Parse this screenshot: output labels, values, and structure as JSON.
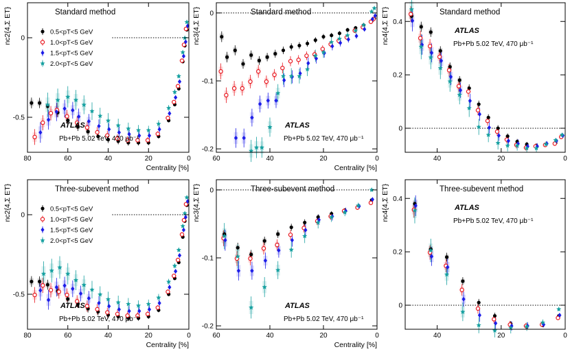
{
  "figure": {
    "legend": [
      "0.5<pT<5 GeV",
      "1.0<pT<5 GeV",
      "1.5<pT<5 GeV",
      "2.0<pT<5 GeV"
    ],
    "experiment": "ATLAS",
    "dataset": "Pb+Pb 5.02 TeV, 470 μb⁻¹"
  },
  "chart_data": [
    {
      "type": "scatter",
      "title": "Standard method",
      "xlabel": "Centrality [%]",
      "ylabel": "nc2{4,Σ ET}",
      "xlim": [
        80,
        0
      ],
      "ylim": [
        -0.72,
        0.22
      ],
      "xticks": [
        80,
        60,
        40,
        20,
        0
      ],
      "yticks": [
        0,
        -0.5
      ],
      "series": [
        {
          "name": "0.5<pT<5 GeV",
          "x": [
            78,
            74,
            70,
            65,
            60,
            55,
            50,
            45,
            40,
            35,
            30,
            25,
            20,
            15,
            10,
            7,
            5,
            3,
            2,
            1
          ],
          "values": [
            -0.41,
            -0.41,
            -0.43,
            -0.47,
            -0.52,
            -0.56,
            -0.59,
            -0.62,
            -0.64,
            -0.65,
            -0.66,
            -0.66,
            -0.66,
            -0.62,
            -0.52,
            -0.42,
            -0.32,
            -0.15,
            -0.05,
            0.05
          ]
        },
        {
          "name": "1.0<pT<5 GeV",
          "x": [
            76,
            72,
            68,
            65,
            60,
            55,
            50,
            45,
            40,
            35,
            30,
            25,
            20,
            15,
            10,
            7,
            5,
            3,
            2,
            1
          ],
          "values": [
            -0.62,
            -0.53,
            -0.47,
            -0.45,
            -0.49,
            -0.53,
            -0.56,
            -0.59,
            -0.61,
            -0.63,
            -0.64,
            -0.64,
            -0.64,
            -0.6,
            -0.5,
            -0.4,
            -0.3,
            -0.14,
            -0.04,
            0.06
          ]
        },
        {
          "name": "1.5<pT<5 GeV",
          "x": [
            74,
            70,
            66,
            62,
            58,
            55,
            50,
            45,
            40,
            35,
            30,
            25,
            20,
            15,
            10,
            7,
            5,
            3,
            2,
            1
          ],
          "values": [
            -0.6,
            -0.52,
            -0.47,
            -0.45,
            -0.46,
            -0.5,
            -0.53,
            -0.56,
            -0.58,
            -0.6,
            -0.61,
            -0.62,
            -0.62,
            -0.58,
            -0.48,
            -0.38,
            -0.28,
            -0.12,
            -0.03,
            0.07
          ]
        },
        {
          "name": "2.0<pT<5 GeV",
          "x": [
            70,
            65,
            60,
            56,
            52,
            48,
            44,
            40,
            35,
            30,
            25,
            20,
            15,
            10,
            7,
            5,
            3,
            2,
            1
          ],
          "values": [
            -0.43,
            -0.4,
            -0.38,
            -0.4,
            -0.43,
            -0.47,
            -0.5,
            -0.53,
            -0.56,
            -0.58,
            -0.59,
            -0.59,
            -0.55,
            -0.45,
            -0.35,
            -0.25,
            -0.1,
            -0.01,
            0.09
          ]
        }
      ],
      "legend": true,
      "annotation": true
    },
    {
      "type": "scatter",
      "title": "Standard method",
      "xlabel": "Centrality [%]",
      "ylabel": "nc3{4,Σ ET}",
      "xlim": [
        60,
        0
      ],
      "ylim": [
        -0.205,
        0.015
      ],
      "xticks": [
        60,
        40,
        20,
        0
      ],
      "yticks": [
        0,
        -0.1,
        -0.2
      ],
      "series": [
        {
          "name": "0.5<pT<5 GeV",
          "x": [
            58,
            56,
            53,
            50,
            47,
            44,
            41,
            38,
            35,
            32,
            29,
            26,
            23,
            20,
            17,
            14,
            11,
            8,
            5,
            2,
            1
          ],
          "values": [
            -0.035,
            -0.065,
            -0.055,
            -0.075,
            -0.062,
            -0.07,
            -0.065,
            -0.06,
            -0.055,
            -0.05,
            -0.048,
            -0.045,
            -0.04,
            -0.035,
            -0.033,
            -0.03,
            -0.025,
            -0.022,
            -0.018,
            -0.012,
            -0.008
          ]
        },
        {
          "name": "1.0<pT<5 GeV",
          "x": [
            58,
            56,
            53,
            50,
            47,
            44,
            41,
            38,
            35,
            32,
            29,
            26,
            23,
            20,
            17,
            14,
            11,
            8,
            5,
            2,
            1
          ],
          "values": [
            -0.085,
            -0.12,
            -0.11,
            -0.11,
            -0.1,
            -0.085,
            -0.1,
            -0.09,
            -0.08,
            -0.07,
            -0.068,
            -0.062,
            -0.06,
            -0.052,
            -0.045,
            -0.04,
            -0.035,
            -0.025,
            -0.02,
            -0.012,
            -0.008
          ]
        },
        {
          "name": "1.5<pT<5 GeV",
          "x": [
            53,
            50,
            47,
            44,
            41,
            38,
            35,
            32,
            29,
            26,
            23,
            20,
            17,
            14,
            11,
            8,
            5,
            2,
            1
          ],
          "values": [
            -0.185,
            -0.185,
            -0.155,
            -0.135,
            -0.13,
            -0.13,
            -0.1,
            -0.095,
            -0.09,
            -0.075,
            -0.068,
            -0.06,
            -0.05,
            -0.045,
            -0.04,
            -0.035,
            -0.025,
            -0.01,
            -0.005
          ]
        },
        {
          "name": "2.0<pT<5 GeV",
          "x": [
            47,
            45,
            43,
            40,
            37,
            35,
            32,
            29,
            26,
            23,
            20,
            17,
            14,
            11,
            8,
            5,
            2,
            1
          ],
          "values": [
            -0.205,
            -0.2,
            -0.2,
            -0.17,
            -0.12,
            -0.095,
            -0.095,
            -0.095,
            -0.085,
            -0.065,
            -0.06,
            -0.045,
            -0.04,
            -0.035,
            -0.028,
            -0.02,
            0.0,
            0.005
          ]
        }
      ],
      "annotation": true
    },
    {
      "type": "scatter",
      "title": "Standard method",
      "xlabel": "",
      "ylabel": "nc4{4,Σ ET}",
      "xlim": [
        50,
        0
      ],
      "ylim": [
        -0.09,
        0.47
      ],
      "xticks": [
        40,
        20,
        0
      ],
      "yticks": [
        0.4,
        0.2,
        0
      ],
      "series": [
        {
          "name": "0.5<pT<5 GeV",
          "x": [
            48,
            45,
            42,
            39,
            36,
            33,
            30,
            27,
            24,
            21,
            18,
            15,
            12,
            9,
            6,
            3,
            1
          ],
          "values": [
            0.42,
            0.38,
            0.36,
            0.29,
            0.23,
            0.18,
            0.15,
            0.09,
            0.04,
            0.0,
            -0.03,
            -0.05,
            -0.06,
            -0.065,
            -0.06,
            -0.055,
            -0.03
          ]
        },
        {
          "name": "1.0<pT<5 GeV",
          "x": [
            48,
            45,
            42,
            39,
            36,
            33,
            30,
            27,
            24,
            21,
            18,
            15,
            12,
            9,
            6,
            3,
            1
          ],
          "values": [
            0.43,
            0.34,
            0.31,
            0.27,
            0.22,
            0.16,
            0.14,
            0.07,
            0.03,
            -0.01,
            -0.04,
            -0.06,
            -0.07,
            -0.065,
            -0.06,
            -0.055,
            -0.03
          ]
        },
        {
          "name": "1.5<pT<5 GeV",
          "x": [
            48,
            45,
            42,
            39,
            36,
            33,
            30,
            27,
            24,
            21,
            18,
            15,
            12,
            9,
            6,
            3,
            1
          ],
          "values": [
            0.4,
            0.31,
            0.28,
            0.25,
            0.19,
            0.14,
            0.1,
            0.05,
            0.0,
            -0.03,
            -0.05,
            -0.06,
            -0.07,
            -0.07,
            -0.06,
            -0.05,
            -0.03
          ]
        },
        {
          "name": "2.0<pT<5 GeV",
          "x": [
            48,
            45,
            42,
            39,
            36,
            33,
            30,
            27,
            24,
            21,
            18,
            15,
            12,
            9,
            6,
            3,
            1
          ],
          "values": [
            0.44,
            0.3,
            0.26,
            0.22,
            0.17,
            0.12,
            0.07,
            0.0,
            -0.03,
            -0.06,
            -0.07,
            -0.07,
            -0.08,
            -0.08,
            -0.065,
            -0.05,
            -0.03
          ]
        }
      ],
      "annotation": true
    },
    {
      "type": "scatter",
      "title": "Three-subevent method",
      "xlabel": "Centrality [%]",
      "ylabel": "nc2{4,Σ ET}",
      "xlim": [
        80,
        0
      ],
      "ylim": [
        -0.72,
        0.22
      ],
      "xticks": [
        80,
        60,
        40,
        20,
        0
      ],
      "yticks": [
        0,
        -0.5
      ],
      "series": [
        {
          "name": "0.5<pT<5 GeV",
          "x": [
            78,
            74,
            70,
            65,
            60,
            55,
            50,
            45,
            40,
            35,
            30,
            25,
            20,
            15,
            10,
            7,
            5,
            3,
            2,
            1
          ],
          "values": [
            -0.42,
            -0.42,
            -0.44,
            -0.48,
            -0.53,
            -0.56,
            -0.59,
            -0.61,
            -0.63,
            -0.64,
            -0.65,
            -0.65,
            -0.64,
            -0.6,
            -0.5,
            -0.4,
            -0.3,
            -0.14,
            -0.04,
            0.06
          ]
        },
        {
          "name": "1.0<pT<5 GeV",
          "x": [
            76,
            72,
            68,
            64,
            60,
            55,
            50,
            45,
            40,
            35,
            30,
            25,
            20,
            15,
            10,
            7,
            5,
            3,
            2,
            1
          ],
          "values": [
            -0.5,
            -0.44,
            -0.47,
            -0.48,
            -0.5,
            -0.54,
            -0.57,
            -0.59,
            -0.61,
            -0.62,
            -0.63,
            -0.63,
            -0.62,
            -0.58,
            -0.48,
            -0.38,
            -0.28,
            -0.12,
            -0.03,
            0.07
          ]
        },
        {
          "name": "1.5<pT<5 GeV",
          "x": [
            74,
            70,
            66,
            62,
            58,
            54,
            50,
            45,
            40,
            35,
            30,
            25,
            20,
            15,
            10,
            7,
            5,
            3,
            2,
            1
          ],
          "values": [
            -0.48,
            -0.54,
            -0.46,
            -0.45,
            -0.47,
            -0.5,
            -0.53,
            -0.56,
            -0.58,
            -0.6,
            -0.61,
            -0.61,
            -0.6,
            -0.56,
            -0.46,
            -0.36,
            -0.26,
            -0.1,
            -0.02,
            0.08
          ]
        },
        {
          "name": "2.0<pT<5 GeV",
          "x": [
            72,
            68,
            64,
            60,
            56,
            52,
            48,
            44,
            40,
            35,
            30,
            25,
            20,
            15,
            10,
            7,
            5,
            3,
            2,
            1
          ],
          "values": [
            -0.38,
            -0.36,
            -0.34,
            -0.38,
            -0.42,
            -0.45,
            -0.48,
            -0.51,
            -0.54,
            -0.56,
            -0.57,
            -0.58,
            -0.57,
            -0.53,
            -0.43,
            -0.33,
            -0.23,
            -0.08,
            0.0,
            0.1
          ]
        }
      ],
      "legend": true,
      "annotation": true
    },
    {
      "type": "scatter",
      "title": "Three-subevent method",
      "xlabel": "Centrality [%]",
      "ylabel": "nc3{4,Σ ET}",
      "xlim": [
        60,
        0
      ],
      "ylim": [
        -0.205,
        0.015
      ],
      "xticks": [
        60,
        40,
        20,
        0
      ],
      "yticks": [
        0,
        -0.1,
        -0.2
      ],
      "series": [
        {
          "name": "0.5<pT<5 GeV",
          "x": [
            57,
            52,
            47,
            42,
            37,
            32,
            27,
            22,
            17,
            12,
            7,
            2
          ],
          "values": [
            -0.065,
            -0.085,
            -0.095,
            -0.075,
            -0.065,
            -0.055,
            -0.048,
            -0.04,
            -0.035,
            -0.03,
            -0.025,
            -0.015
          ]
        },
        {
          "name": "1.0<pT<5 GeV",
          "x": [
            57,
            52,
            47,
            42,
            37,
            32,
            27,
            22,
            17,
            12,
            7,
            2
          ],
          "values": [
            -0.07,
            -0.1,
            -0.1,
            -0.085,
            -0.08,
            -0.065,
            -0.055,
            -0.045,
            -0.038,
            -0.03,
            -0.025,
            -0.018
          ]
        },
        {
          "name": "1.5<pT<5 GeV",
          "x": [
            57,
            52,
            47,
            42,
            37,
            32,
            27,
            22,
            17,
            12,
            7,
            2
          ],
          "values": [
            -0.075,
            -0.12,
            -0.12,
            -0.105,
            -0.09,
            -0.075,
            -0.06,
            -0.045,
            -0.04,
            -0.032,
            -0.025,
            -0.015
          ]
        },
        {
          "name": "2.0<pT<5 GeV",
          "x": [
            57,
            52,
            47,
            42,
            37,
            32,
            27,
            22,
            17,
            12,
            7,
            2
          ],
          "values": [
            -0.07,
            -0.1,
            -0.175,
            -0.145,
            -0.12,
            -0.09,
            -0.07,
            -0.05,
            -0.042,
            -0.035,
            -0.025,
            -0.002
          ]
        }
      ],
      "annotation": true
    },
    {
      "type": "scatter",
      "title": "Three-subevent method",
      "xlabel": "",
      "ylabel": "nc4{4,Σ ET}",
      "xlim": [
        50,
        0
      ],
      "ylim": [
        -0.09,
        0.47
      ],
      "xticks": [
        40,
        20,
        0
      ],
      "yticks": [
        0.4,
        0.2,
        0
      ],
      "series": [
        {
          "name": "0.5<pT<5 GeV",
          "x": [
            47,
            42,
            37,
            32,
            27,
            22,
            17,
            12,
            7,
            2
          ],
          "values": [
            0.38,
            0.21,
            0.18,
            0.09,
            0.01,
            -0.04,
            -0.07,
            -0.08,
            -0.075,
            -0.04
          ]
        },
        {
          "name": "1.0<pT<5 GeV",
          "x": [
            47,
            42,
            37,
            32,
            27,
            22,
            17,
            12,
            7,
            2
          ],
          "values": [
            0.36,
            0.2,
            0.15,
            0.06,
            -0.01,
            -0.05,
            -0.07,
            -0.075,
            -0.07,
            -0.045
          ]
        },
        {
          "name": "1.5<pT<5 GeV",
          "x": [
            47,
            42,
            37,
            32,
            27,
            22,
            17,
            12,
            7,
            2
          ],
          "values": [
            0.37,
            0.18,
            0.14,
            0.02,
            -0.04,
            -0.07,
            -0.08,
            -0.08,
            -0.075,
            -0.04
          ]
        },
        {
          "name": "2.0<pT<5 GeV",
          "x": [
            47,
            42,
            37,
            32,
            27,
            22,
            17,
            12,
            7,
            2
          ],
          "values": [
            0.35,
            0.2,
            0.11,
            -0.03,
            -0.08,
            -0.1,
            -0.09,
            -0.085,
            -0.07,
            -0.02
          ]
        }
      ],
      "annotation": true
    }
  ]
}
